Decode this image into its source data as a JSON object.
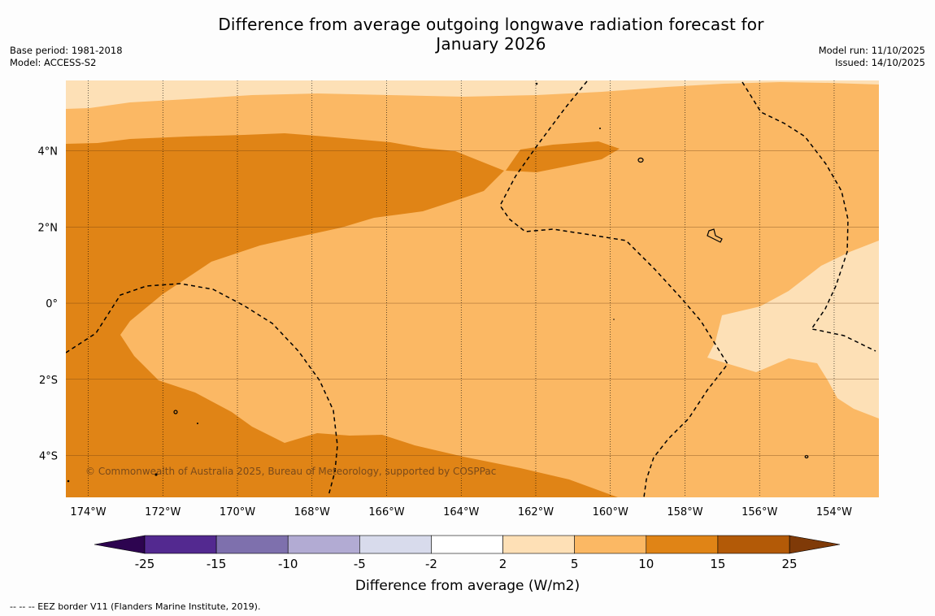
{
  "title": {
    "line1": "Difference from average outgoing longwave radiation forecast for",
    "line2": "January 2026"
  },
  "meta": {
    "base_period": "Base period: 1981-2018",
    "model": "Model: ACCESS-S2",
    "model_run": "Model run: 11/10/2025",
    "issued": "Issued: 14/10/2025"
  },
  "map": {
    "lon_range": [
      -174.6,
      -152.8
    ],
    "lat_range": [
      -5.1,
      5.85
    ],
    "lon_ticks": [
      {
        "value": -174,
        "label": "174°W"
      },
      {
        "value": -172,
        "label": "172°W"
      },
      {
        "value": -170,
        "label": "170°W"
      },
      {
        "value": -168,
        "label": "168°W"
      },
      {
        "value": -166,
        "label": "166°W"
      },
      {
        "value": -164,
        "label": "164°W"
      },
      {
        "value": -162,
        "label": "162°W"
      },
      {
        "value": -160,
        "label": "160°W"
      },
      {
        "value": -158,
        "label": "158°W"
      },
      {
        "value": -156,
        "label": "156°W"
      },
      {
        "value": -154,
        "label": "154°W"
      }
    ],
    "lat_ticks": [
      {
        "value": 4,
        "label": "4°N"
      },
      {
        "value": 2,
        "label": "2°N"
      },
      {
        "value": 0,
        "label": "0°"
      },
      {
        "value": -2,
        "label": "2°S"
      },
      {
        "value": -4,
        "label": "4°S"
      }
    ],
    "copyright": "© Commonwealth of Australia 2025, Bureau of Meteorology, supported by COSPPac",
    "fill_colors": {
      "c2_5": "#fde0b6",
      "c5_10": "#fbb864",
      "c10_15": "#e08416"
    }
  },
  "colorbar": {
    "title": "Difference from average (W/m2)",
    "bounds": [
      "-25",
      "-15",
      "-10",
      "-5",
      "-2",
      "2",
      "5",
      "10",
      "15",
      "25"
    ],
    "colors": [
      "#532990",
      "#7e70ad",
      "#b2abd3",
      "#d8dbec",
      "#ffffff",
      "#fee0b6",
      "#fbb864",
      "#e08416",
      "#b35a07"
    ],
    "extend_min_color": "#2d0450",
    "extend_max_color": "#7f3a08"
  },
  "footnote": "--  --  -- EEZ border V11 (Flanders Marine Institute, 2019)."
}
